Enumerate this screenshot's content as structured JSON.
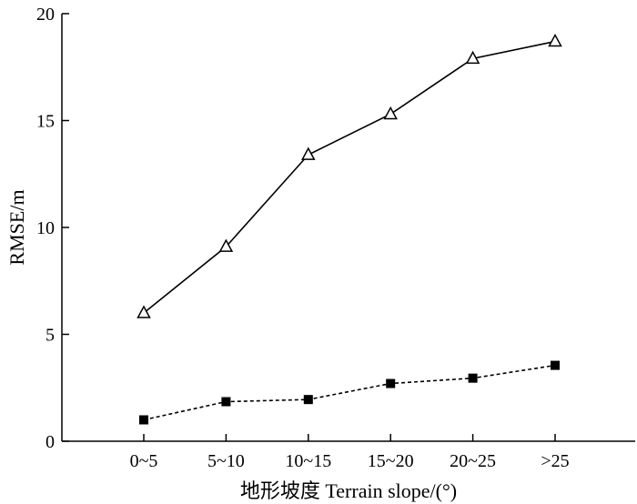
{
  "chart_data": {
    "type": "line",
    "title": "",
    "xlabel": "地形坡度 Terrain slope/(°)",
    "ylabel": "RMSE/m",
    "categories": [
      "0~5",
      "5~10",
      "10~15",
      "15~20",
      "20~25",
      ">25"
    ],
    "ylim": [
      0,
      20
    ],
    "yticks": [
      0,
      5,
      10,
      15,
      20
    ],
    "grid": false,
    "legend": "none",
    "series": [
      {
        "marker": "open-triangle",
        "line_style": "solid",
        "color": "#000000",
        "values": [
          6.0,
          9.1,
          13.4,
          15.3,
          17.9,
          18.7
        ]
      },
      {
        "marker": "filled-square",
        "line_style": "dashed",
        "color": "#000000",
        "values": [
          1.0,
          1.85,
          1.95,
          2.7,
          2.95,
          3.55
        ]
      }
    ]
  }
}
